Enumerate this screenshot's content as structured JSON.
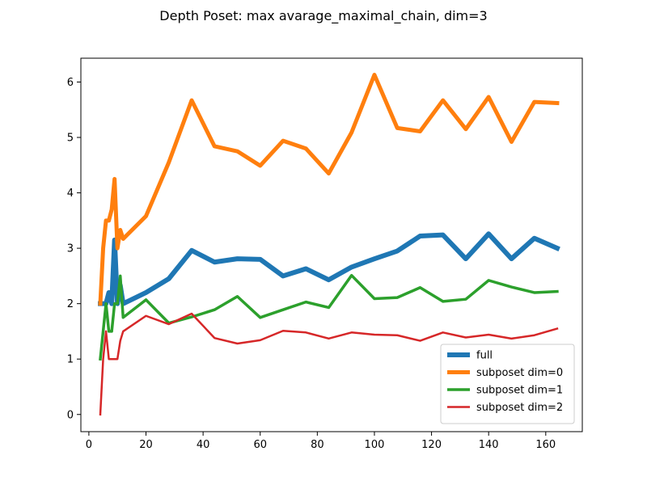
{
  "chart_data": {
    "type": "line",
    "title": "Depth Poset: max avarage_maximal_chain, dim=3",
    "xlabel": "",
    "ylabel": "",
    "xlim": [
      -2.8,
      172.8
    ],
    "ylim": [
      -0.31,
      6.43
    ],
    "xticks": [
      "0",
      "20",
      "40",
      "60",
      "80",
      "100",
      "120",
      "140",
      "160"
    ],
    "yticks": [
      "0",
      "1",
      "2",
      "3",
      "4",
      "5",
      "6"
    ],
    "legend_position": "lower right",
    "grid": false,
    "series": [
      {
        "name": "full",
        "color": "#1f77b4",
        "width": 6,
        "x": [
          4,
          5,
          6,
          7,
          8,
          9,
          10,
          11,
          12,
          20,
          28,
          36,
          44,
          52,
          60,
          68,
          76,
          84,
          92,
          100,
          108,
          116,
          124,
          132,
          140,
          148,
          156,
          164
        ],
        "y": [
          2.0,
          2.0,
          2.0,
          2.2,
          2.0,
          3.15,
          2.0,
          2.33,
          2.0,
          2.2,
          2.45,
          2.96,
          2.75,
          2.81,
          2.8,
          2.5,
          2.63,
          2.43,
          2.66,
          2.81,
          2.95,
          3.22,
          3.24,
          2.81,
          3.26,
          2.81,
          3.18,
          3.0
        ]
      },
      {
        "name": "subposet dim=0",
        "color": "#ff7f0e",
        "width": 5,
        "x": [
          4,
          5,
          6,
          7,
          8,
          9,
          10,
          11,
          12,
          20,
          28,
          36,
          44,
          52,
          60,
          68,
          76,
          84,
          92,
          100,
          108,
          116,
          124,
          132,
          140,
          148,
          156,
          164
        ],
        "y": [
          2.0,
          3.0,
          3.5,
          3.5,
          3.7,
          4.25,
          3.0,
          3.33,
          3.17,
          3.58,
          4.55,
          5.67,
          4.84,
          4.75,
          4.49,
          4.94,
          4.8,
          4.35,
          5.09,
          6.13,
          5.17,
          5.11,
          5.67,
          5.15,
          5.73,
          4.92,
          5.64,
          5.62
        ]
      },
      {
        "name": "subposet dim=1",
        "color": "#2ca02c",
        "width": 3.5,
        "x": [
          4,
          5,
          6,
          7,
          8,
          9,
          10,
          11,
          12,
          20,
          28,
          36,
          44,
          52,
          60,
          68,
          76,
          84,
          92,
          100,
          108,
          116,
          124,
          132,
          140,
          148,
          156,
          164
        ],
        "y": [
          1.0,
          1.5,
          2.0,
          1.5,
          1.5,
          2.0,
          2.0,
          2.5,
          1.75,
          2.07,
          1.65,
          1.76,
          1.89,
          2.13,
          1.75,
          1.89,
          2.03,
          1.93,
          2.51,
          2.09,
          2.11,
          2.29,
          2.04,
          2.08,
          2.42,
          2.3,
          2.2,
          2.22
        ]
      },
      {
        "name": "subposet dim=2",
        "color": "#d62728",
        "width": 2.5,
        "x": [
          4,
          5,
          6,
          7,
          8,
          9,
          10,
          11,
          12,
          20,
          28,
          36,
          44,
          52,
          60,
          68,
          76,
          84,
          92,
          100,
          108,
          116,
          124,
          132,
          140,
          148,
          156,
          164
        ],
        "y": [
          0.0,
          1.0,
          1.5,
          1.0,
          1.0,
          1.0,
          1.0,
          1.33,
          1.5,
          1.78,
          1.63,
          1.82,
          1.38,
          1.28,
          1.34,
          1.51,
          1.48,
          1.37,
          1.48,
          1.44,
          1.43,
          1.33,
          1.48,
          1.39,
          1.44,
          1.37,
          1.43,
          1.55
        ]
      }
    ]
  }
}
